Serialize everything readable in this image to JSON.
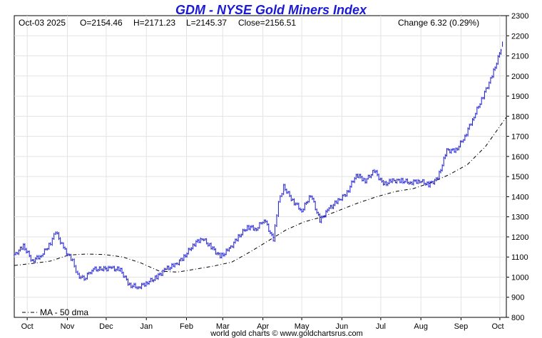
{
  "chart_data": {
    "type": "line",
    "title": "GDM - NYSE Gold Miners Index",
    "header": {
      "date": "Oct-03  2025",
      "open": "O=2154.46",
      "high": "H=2171.23",
      "low": "L=2145.37",
      "close": "Close=2156.51",
      "change": "Change 6.32 (0.29%)"
    },
    "footer": "world gold charts © www.goldchartsrus.com",
    "ylim": [
      800,
      2300
    ],
    "y_ticks": [
      "800",
      "900",
      "1000",
      "1100",
      "1200",
      "1300",
      "1400",
      "1500",
      "1600",
      "1700",
      "1800",
      "1900",
      "2000",
      "2100",
      "2200",
      "2300"
    ],
    "x_ticks": [
      "Oct",
      "Nov",
      "Dec",
      "Jan",
      "Feb",
      "Mar",
      "Apr",
      "May",
      "Jun",
      "Jul",
      "Aug",
      "Sep",
      "Oct"
    ],
    "x_tick_dates": [
      "2024-10-01",
      "2024-11-01",
      "2024-12-01",
      "2025-01-01",
      "2025-02-01",
      "2025-03-01",
      "2025-04-01",
      "2025-05-01",
      "2025-06-01",
      "2025-07-01",
      "2025-08-01",
      "2025-09-01",
      "2025-10-01"
    ],
    "x_range": [
      "2024-09-21",
      "2025-10-06"
    ],
    "grid": true,
    "legend": {
      "position": "bottom-left",
      "label": "MA - 50 dma"
    },
    "series": [
      {
        "style": "price-bars",
        "color": "#1a1ad6",
        "x": [
          "2024-09-21",
          "2024-09-28",
          "2024-10-05",
          "2024-10-12",
          "2024-10-19",
          "2024-10-23",
          "2024-10-29",
          "2024-11-05",
          "2024-11-09",
          "2024-11-14",
          "2024-11-20",
          "2024-11-28",
          "2024-12-05",
          "2024-12-12",
          "2024-12-19",
          "2024-12-26",
          "2025-01-02",
          "2025-01-09",
          "2025-01-16",
          "2025-01-23",
          "2025-01-30",
          "2025-02-06",
          "2025-02-13",
          "2025-02-20",
          "2025-02-27",
          "2025-03-06",
          "2025-03-13",
          "2025-03-20",
          "2025-03-27",
          "2025-04-02",
          "2025-04-09",
          "2025-04-13",
          "2025-04-17",
          "2025-04-24",
          "2025-05-01",
          "2025-05-08",
          "2025-05-15",
          "2025-05-22",
          "2025-05-29",
          "2025-06-05",
          "2025-06-12",
          "2025-06-19",
          "2025-06-26",
          "2025-07-03",
          "2025-07-10",
          "2025-07-17",
          "2025-07-24",
          "2025-07-31",
          "2025-08-07",
          "2025-08-14",
          "2025-08-21",
          "2025-08-28",
          "2025-09-04",
          "2025-09-11",
          "2025-09-18",
          "2025-09-25",
          "2025-10-03"
        ],
        "values": [
          1110,
          1155,
          1080,
          1110,
          1170,
          1225,
          1145,
          1080,
          1010,
          990,
          1040,
          1040,
          1045,
          1035,
          960,
          950,
          975,
          1000,
          1040,
          1060,
          1100,
          1160,
          1195,
          1150,
          1100,
          1140,
          1200,
          1250,
          1240,
          1290,
          1185,
          1370,
          1450,
          1380,
          1330,
          1410,
          1280,
          1340,
          1380,
          1420,
          1510,
          1480,
          1530,
          1460,
          1480,
          1480,
          1470,
          1480,
          1460,
          1490,
          1630,
          1630,
          1700,
          1800,
          1900,
          2000,
          2156.51
        ]
      },
      {
        "name": "MA - 50 dma",
        "style": "dashed",
        "color": "#000000",
        "x": [
          "2024-09-21",
          "2024-10-05",
          "2024-10-19",
          "2024-11-02",
          "2024-11-16",
          "2024-11-30",
          "2024-12-14",
          "2024-12-28",
          "2025-01-11",
          "2025-01-25",
          "2025-02-08",
          "2025-02-22",
          "2025-03-08",
          "2025-03-22",
          "2025-04-05",
          "2025-04-19",
          "2025-05-03",
          "2025-05-17",
          "2025-05-31",
          "2025-06-14",
          "2025-06-28",
          "2025-07-12",
          "2025-07-26",
          "2025-08-09",
          "2025-08-23",
          "2025-09-06",
          "2025-09-20",
          "2025-10-06"
        ],
        "values": [
          1058,
          1068,
          1080,
          1110,
          1115,
          1112,
          1100,
          1070,
          1030,
          1025,
          1040,
          1055,
          1075,
          1125,
          1180,
          1235,
          1275,
          1300,
          1335,
          1370,
          1400,
          1425,
          1440,
          1470,
          1510,
          1560,
          1650,
          1795
        ]
      }
    ]
  }
}
